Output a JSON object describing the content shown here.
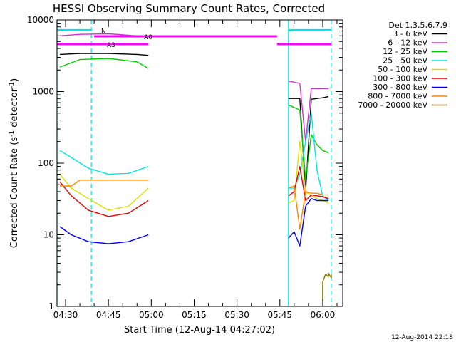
{
  "chart_data": {
    "type": "line",
    "title": "HESSI Observing Summary Count Rates, Corrected",
    "xlabel": "Start Time (12-Aug-14 04:27:02)",
    "ylabel": "Corrected Count Rate (s",
    "ylabel_sup": "-1",
    "ylabel_mid": " detector",
    "ylabel_sup2": "-1",
    "ylabel_end": ")",
    "yscale": "log",
    "xlim": [
      "04:27",
      "06:07"
    ],
    "ylim": [
      1,
      10000
    ],
    "x_ticks": [
      "04:30",
      "04:45",
      "05:00",
      "05:15",
      "05:30",
      "05:45",
      "06:00"
    ],
    "y_ticks": [
      "1",
      "10",
      "100",
      "1000",
      "10000"
    ],
    "legend_title": "Det 1,3,5,6,7,9",
    "legend_placement": "right",
    "timestamp": "12-Aug-2014 22:18",
    "series": [
      {
        "name": "3 - 6 keV",
        "color": "#000000",
        "x": [
          "04:28",
          "04:35",
          "04:45",
          "04:55",
          "04:59",
          "05:44",
          "05:48",
          "05:50",
          "05:52",
          "05:54",
          "05:56",
          "05:58",
          "06:00",
          "06:02"
        ],
        "y": [
          3300,
          3400,
          3400,
          3300,
          3200,
          null,
          800,
          800,
          800,
          40,
          780,
          800,
          820,
          850
        ]
      },
      {
        "name": "6 - 12 keV",
        "color": "#cc33cc",
        "x": [
          "04:28",
          "04:35",
          "04:45",
          "04:55",
          "04:59",
          "05:44",
          "05:48",
          "05:50",
          "05:52",
          "05:54",
          "05:56",
          "05:58",
          "06:00",
          "06:02"
        ],
        "y": [
          6000,
          6300,
          6400,
          6000,
          5800,
          null,
          1400,
          1350,
          1300,
          200,
          1100,
          1100,
          1100,
          1100
        ]
      },
      {
        "name": "12 - 25 keV",
        "color": "#00cc00",
        "x": [
          "04:28",
          "04:35",
          "04:45",
          "04:55",
          "04:59",
          "05:44",
          "05:48",
          "05:50",
          "05:52",
          "05:54",
          "05:56",
          "05:58",
          "06:00",
          "06:02"
        ],
        "y": [
          2200,
          2800,
          2900,
          2600,
          2100,
          null,
          650,
          600,
          550,
          60,
          250,
          180,
          150,
          140
        ]
      },
      {
        "name": "25 - 50 keV",
        "color": "#00e5e5",
        "x": [
          "04:28",
          "04:32",
          "04:38",
          "04:45",
          "04:52",
          "04:59",
          "05:44",
          "05:48",
          "05:50",
          "05:52",
          "05:54",
          "05:56",
          "05:58",
          "06:00",
          "06:02"
        ],
        "y": [
          150,
          120,
          85,
          70,
          72,
          90,
          null,
          45,
          45,
          70,
          200,
          500,
          80,
          35,
          30
        ]
      },
      {
        "name": "50 - 100 keV",
        "color": "#dddd00",
        "x": [
          "04:28",
          "04:32",
          "04:38",
          "04:45",
          "04:52",
          "04:59",
          "05:44",
          "05:48",
          "05:50",
          "05:52",
          "05:54",
          "05:56",
          "05:58",
          "06:00",
          "06:02"
        ],
        "y": [
          70,
          45,
          32,
          22,
          25,
          45,
          null,
          28,
          30,
          200,
          40,
          35,
          32,
          30,
          28
        ]
      },
      {
        "name": "100 - 300 keV",
        "color": "#ee0000",
        "x": [
          "04:28",
          "04:32",
          "04:38",
          "04:45",
          "04:52",
          "04:59",
          "05:44",
          "05:48",
          "05:50",
          "05:52",
          "05:54",
          "05:56",
          "05:58",
          "06:00",
          "06:02"
        ],
        "y": [
          55,
          35,
          22,
          18,
          20,
          30,
          null,
          35,
          40,
          90,
          30,
          36,
          35,
          34,
          32
        ]
      },
      {
        "name": "300 - 800 keV",
        "color": "#0000ee",
        "x": [
          "04:28",
          "04:32",
          "04:38",
          "04:45",
          "04:52",
          "04:59",
          "05:44",
          "05:48",
          "05:50",
          "05:52",
          "05:54",
          "05:56",
          "05:58",
          "06:00",
          "06:02"
        ],
        "y": [
          13,
          10,
          8,
          7.5,
          8,
          10,
          null,
          9,
          11,
          7,
          25,
          32,
          30,
          30,
          30
        ]
      },
      {
        "name": "800 - 7000 keV",
        "color": "#ff8800",
        "x": [
          "04:28",
          "04:32",
          "04:35",
          "04:45",
          "04:55",
          "04:59",
          "05:44",
          "05:48",
          "05:50",
          "05:52",
          "05:54",
          "05:56",
          "05:58",
          "06:00",
          "06:02"
        ],
        "y": [
          48,
          48,
          58,
          58,
          58,
          58,
          null,
          45,
          48,
          12,
          40,
          38,
          38,
          36,
          36
        ]
      },
      {
        "name": "7000 - 20000 keV",
        "color": "#887700",
        "x": [
          "06:00",
          "06:00",
          "06:01",
          "06:02",
          "06:02",
          "06:03",
          "06:03"
        ],
        "y": [
          1.2,
          2.2,
          2.8,
          2.6,
          2.9,
          2.5,
          2.8
        ]
      }
    ],
    "annotations": [
      {
        "label": "N",
        "color": "#00e5e5",
        "segments": [
          [
            "04:27",
            "04:39"
          ],
          [
            "05:48",
            "06:03"
          ]
        ],
        "y": 7200
      },
      {
        "label": "A0",
        "color": "#ff00ff",
        "segments": [
          [
            "04:40",
            "05:44"
          ]
        ],
        "y": 5900
      },
      {
        "label": "A3",
        "color": "#ff00ff",
        "segments": [
          [
            "04:27",
            "04:59"
          ],
          [
            "05:44",
            "06:03"
          ]
        ],
        "y": 4600
      }
    ],
    "vlines_solid": [
      "04:27",
      "05:48"
    ],
    "vlines_dashed": [
      "04:39",
      "06:03"
    ]
  }
}
